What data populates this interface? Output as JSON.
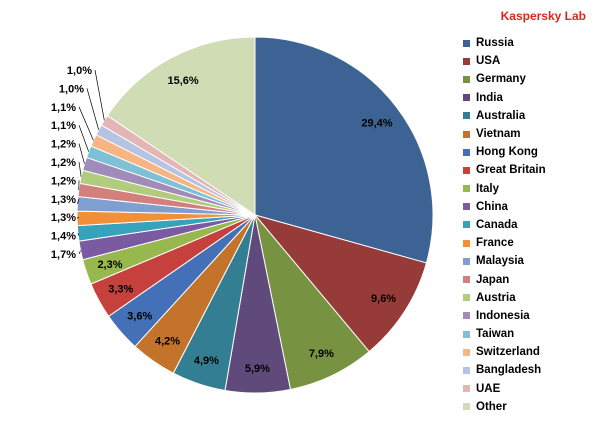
{
  "brand": {
    "text": "Kaspersky Lab",
    "color": "#e2241a"
  },
  "chart_data": {
    "type": "pie",
    "title": "",
    "legend_position": "right",
    "start": "top, clockwise",
    "series": [
      {
        "name": "Russia",
        "value": 29.4,
        "label": "29,4%",
        "color": "#3c6393"
      },
      {
        "name": "USA",
        "value": 9.6,
        "label": "9,6%",
        "color": "#973b39"
      },
      {
        "name": "Germany",
        "value": 7.9,
        "label": "7,9%",
        "color": "#779240"
      },
      {
        "name": "India",
        "value": 5.9,
        "label": "5,9%",
        "color": "#604a7b"
      },
      {
        "name": "Australia",
        "value": 4.9,
        "label": "4,9%",
        "color": "#347e93"
      },
      {
        "name": "Vietnam",
        "value": 4.2,
        "label": "4,2%",
        "color": "#c4732a"
      },
      {
        "name": "Hong Kong",
        "value": 3.6,
        "label": "3,6%",
        "color": "#4470b8"
      },
      {
        "name": "Great Britain",
        "value": 3.3,
        "label": "3,3%",
        "color": "#c6413d"
      },
      {
        "name": "Italy",
        "value": 2.3,
        "label": "2,3%",
        "color": "#97b84f"
      },
      {
        "name": "China",
        "value": 1.7,
        "label": "1,7%",
        "color": "#7a5aa0"
      },
      {
        "name": "Canada",
        "value": 1.4,
        "label": "1,4%",
        "color": "#36a2bb"
      },
      {
        "name": "France",
        "value": 1.3,
        "label": "1,3%",
        "color": "#f2903a"
      },
      {
        "name": "Malaysia",
        "value": 1.3,
        "label": "1,3%",
        "color": "#7f9fd0"
      },
      {
        "name": "Japan",
        "value": 1.2,
        "label": "1,2%",
        "color": "#d27f7e"
      },
      {
        "name": "Austria",
        "value": 1.2,
        "label": "1,2%",
        "color": "#b1cb7f"
      },
      {
        "name": "Indonesia",
        "value": 1.2,
        "label": "1,2%",
        "color": "#a08cba"
      },
      {
        "name": "Taiwan",
        "value": 1.1,
        "label": "1,1%",
        "color": "#7ec0d5"
      },
      {
        "name": "Switzerland",
        "value": 1.1,
        "label": "1,1%",
        "color": "#f8b583"
      },
      {
        "name": "Bangladesh",
        "value": 1.0,
        "label": "1,0%",
        "color": "#b6c3e1"
      },
      {
        "name": "UAE",
        "value": 1.0,
        "label": "1,0%",
        "color": "#e3b6b5"
      },
      {
        "name": "Other",
        "value": 15.6,
        "label": "15,6%",
        "color": "#cfdcb4"
      }
    ]
  }
}
